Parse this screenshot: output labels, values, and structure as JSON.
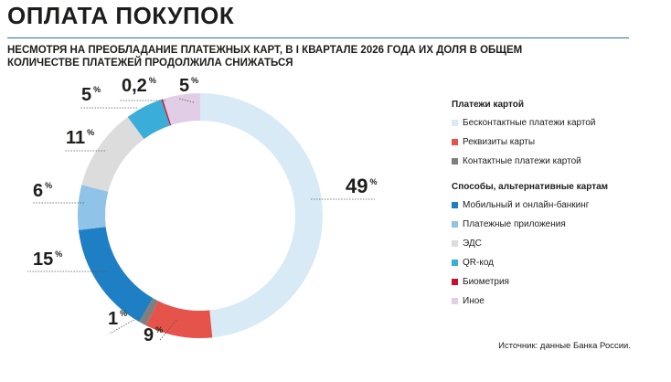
{
  "header": {
    "title": "ОПЛАТА ПОКУПОК",
    "subtitle": "НЕСМОТРЯ НА ПРЕОБЛАДАНИЕ ПЛАТЕЖНЫХ КАРТ, В I КВАРТАЛЕ 2026 ГОДА ИХ ДОЛЯ В ОБЩЕМ КОЛИЧЕСТВЕ ПЛАТЕЖЕЙ ПРОДОЛЖИЛА СНИЖАТЬСЯ"
  },
  "legend": {
    "groups": [
      {
        "title": "Платежи картой",
        "items": [
          {
            "label": "Бесконтактные платежи картой",
            "color": "#d8eaf6"
          },
          {
            "label": "Реквизиты карты",
            "color": "#e5534b"
          },
          {
            "label": "Контактные платежи картой",
            "color": "#7f7f7f"
          }
        ]
      },
      {
        "title": "Способы, альтернативные картам",
        "items": [
          {
            "label": "Мобильный и онлайн-банкинг",
            "color": "#1f7fc4"
          },
          {
            "label": "Платежные приложения",
            "color": "#8fc3e8"
          },
          {
            "label": "ЭДС",
            "color": "#dcdcdc"
          },
          {
            "label": "QR-код",
            "color": "#3aaed8"
          },
          {
            "label": "Биометрия",
            "color": "#c8102e"
          },
          {
            "label": "Иное",
            "color": "#e2cde6"
          }
        ]
      }
    ]
  },
  "source": "Источник: данные Банка России.",
  "chart_data": {
    "type": "pie",
    "variant": "donut",
    "unit": "%",
    "start": "top, clockwise",
    "slices": [
      {
        "name": "Бесконтактные платежи картой",
        "value": 49,
        "label": "49",
        "color": "#d8eaf6"
      },
      {
        "name": "Реквизиты карты",
        "value": 9,
        "label": "9",
        "color": "#e5534b"
      },
      {
        "name": "Контактные платежи картой",
        "value": 1,
        "label": "1",
        "color": "#7f7f7f"
      },
      {
        "name": "Мобильный и онлайн-банкинг",
        "value": 15,
        "label": "15",
        "color": "#1f7fc4"
      },
      {
        "name": "Платежные приложения",
        "value": 6,
        "label": "6",
        "color": "#8fc3e8"
      },
      {
        "name": "ЭДС",
        "value": 11,
        "label": "11",
        "color": "#dcdcdc"
      },
      {
        "name": "QR-код",
        "value": 5,
        "label": "5",
        "color": "#3aaed8"
      },
      {
        "name": "Биометрия",
        "value": 0.2,
        "label": "0,2",
        "color": "#c8102e"
      },
      {
        "name": "Иное",
        "value": 5,
        "label": "5",
        "color": "#e2cde6"
      }
    ]
  }
}
